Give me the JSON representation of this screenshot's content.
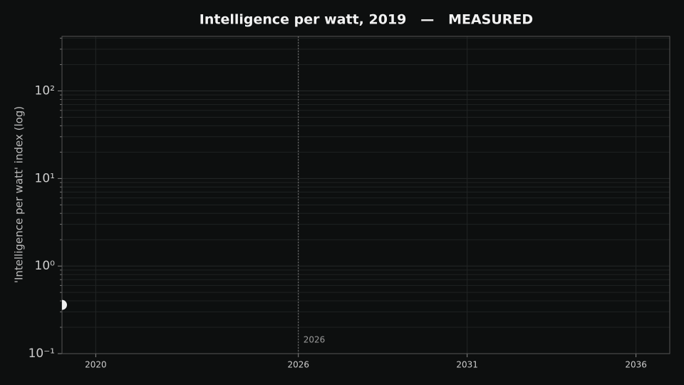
{
  "chart_data": {
    "type": "scatter",
    "title": "Intelligence per watt, 2019   —   MEASURED",
    "ylabel": "'Intelligence per watt' index (log)",
    "yscale": "log",
    "xlim": [
      2019,
      2037
    ],
    "xticks": [
      2020,
      2026,
      2031,
      2036
    ],
    "ylim": [
      0.1,
      420
    ],
    "yticks": [
      {
        "value": 0.1,
        "label": "10⁻¹"
      },
      {
        "value": 1,
        "label": "10⁰"
      },
      {
        "value": 10,
        "label": "10¹"
      },
      {
        "value": 100,
        "label": "10²"
      }
    ],
    "grid": true,
    "vlines": [
      {
        "x": 2026
      }
    ],
    "series": [
      {
        "color": "#f0f0f0",
        "x": [
          2019
        ],
        "values": [
          0.36
        ]
      }
    ]
  }
}
